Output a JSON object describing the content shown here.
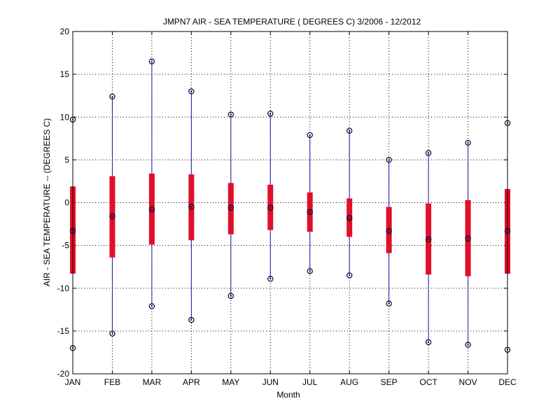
{
  "chart_data": {
    "type": "box",
    "title": "JMPN7  AIR - SEA TEMPERATURE ( DEGREES C) 3/2006 - 12/2012",
    "xlabel": "Month",
    "ylabel": "AIR - SEA TEMPERATURE -- (DEGREES C)",
    "categories": [
      "JAN",
      "FEB",
      "MAR",
      "APR",
      "MAY",
      "JUN",
      "JUL",
      "AUG",
      "SEP",
      "OCT",
      "NOV",
      "DEC"
    ],
    "ylim": [
      -20,
      20
    ],
    "yticks": [
      -20,
      -15,
      -10,
      -5,
      0,
      5,
      10,
      15,
      20
    ],
    "grid": true,
    "max": [
      9.7,
      12.4,
      16.5,
      13.0,
      10.3,
      10.4,
      7.9,
      8.4,
      5.0,
      5.8,
      7.0,
      9.3
    ],
    "min": [
      -17.0,
      -15.3,
      -12.1,
      -13.7,
      -10.9,
      -8.9,
      -8.0,
      -8.5,
      -11.8,
      -16.3,
      -16.6,
      -17.2
    ],
    "upper": [
      1.9,
      3.1,
      3.4,
      3.3,
      2.3,
      2.1,
      1.2,
      0.5,
      -0.5,
      -0.1,
      0.3,
      1.6
    ],
    "lower": [
      -8.3,
      -6.4,
      -4.9,
      -4.4,
      -3.7,
      -3.2,
      -3.4,
      -4.0,
      -5.9,
      -8.4,
      -8.6,
      -8.3
    ],
    "median": [
      -3.3,
      -1.6,
      -0.8,
      -0.5,
      -0.6,
      -0.6,
      -1.1,
      -1.8,
      -3.3,
      -4.3,
      -4.2,
      -3.3
    ],
    "colors": {
      "whisker": "#1a1aa6",
      "box": "#e0102a",
      "marker": "#000033",
      "grid": "#000000"
    }
  }
}
